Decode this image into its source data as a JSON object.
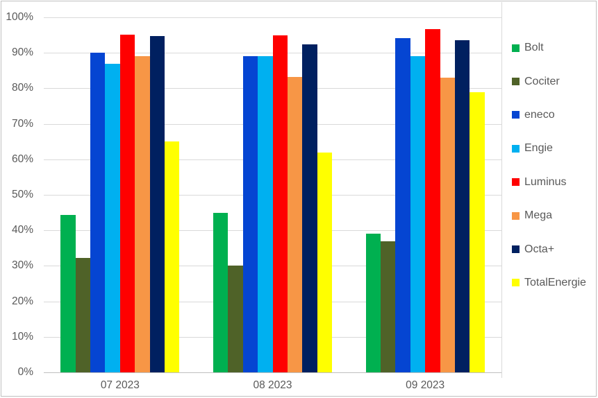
{
  "chart": {
    "background": "#FFFFFF",
    "border_color": "#BFBFBF",
    "text_color": "#595959",
    "gridline_color": "#D9D9D9",
    "axis_line_color": "#BFBFBF"
  },
  "chart_data": {
    "type": "bar",
    "title": "",
    "categories": [
      "07 2023",
      "08 2023",
      "09 2023"
    ],
    "series": [
      {
        "name": "Bolt",
        "color": "#00B050",
        "values": [
          44.3,
          45.0,
          39.0
        ]
      },
      {
        "name": "Cociter",
        "color": "#4F6228",
        "values": [
          32.3,
          30.0,
          37.0
        ]
      },
      {
        "name": "eneco",
        "color": "#0545D2",
        "values": [
          90.0,
          89.0,
          94.2
        ]
      },
      {
        "name": "Engie",
        "color": "#00B0F0",
        "values": [
          87.0,
          89.0,
          89.0
        ]
      },
      {
        "name": "Luminus",
        "color": "#FF0000",
        "values": [
          95.2,
          94.9,
          96.6
        ]
      },
      {
        "name": "Mega",
        "color": "#F79646",
        "values": [
          89.0,
          83.2,
          83.1
        ]
      },
      {
        "name": "Octa+",
        "color": "#002060",
        "values": [
          94.8,
          92.4,
          93.5
        ]
      },
      {
        "name": "TotalEnergie",
        "color": "#FFFF00",
        "values": [
          65.0,
          62.0,
          79.0
        ]
      }
    ],
    "y_axis": {
      "min": 0,
      "max": 100,
      "step": 10,
      "format": "percent",
      "tick_labels": [
        "0%",
        "10%",
        "20%",
        "30%",
        "40%",
        "50%",
        "60%",
        "70%",
        "80%",
        "90%",
        "100%"
      ]
    },
    "grid": true,
    "legend_position": "right"
  }
}
